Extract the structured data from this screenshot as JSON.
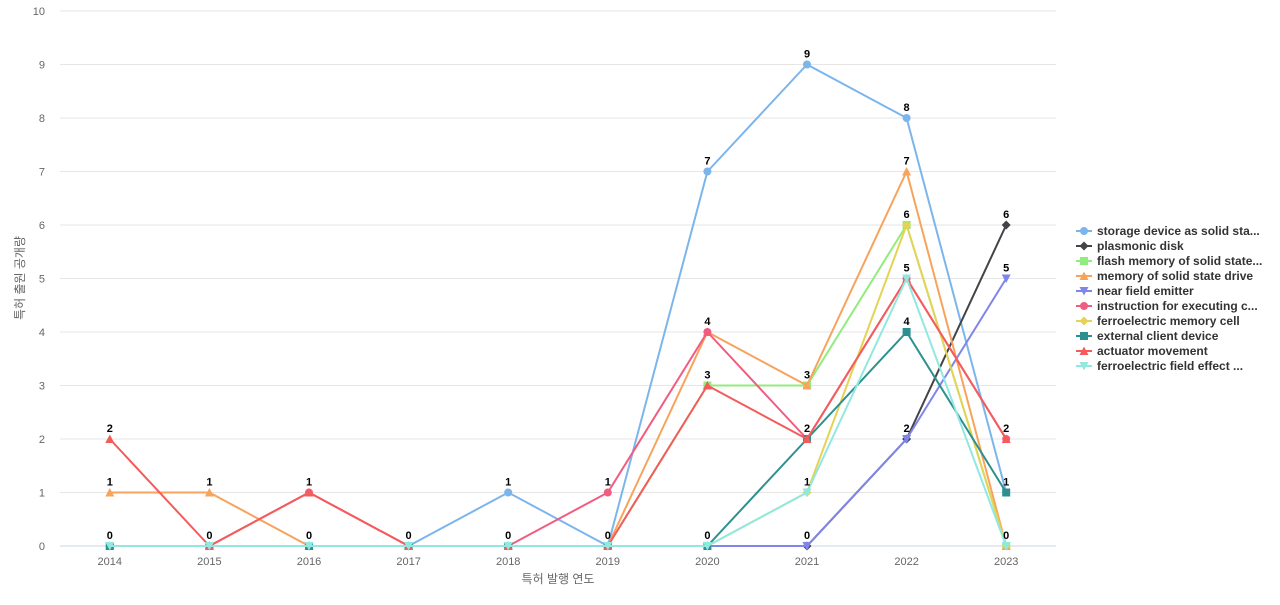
{
  "chart_data": {
    "type": "line",
    "title": "",
    "xlabel": "특허 발행 연도",
    "ylabel": "특허 출원 공개량",
    "ylim": [
      0,
      10
    ],
    "yticks": [
      0,
      1,
      2,
      3,
      4,
      5,
      6,
      7,
      8,
      9,
      10
    ],
    "grid": true,
    "legend_position": "right",
    "categories": [
      "2014",
      "2015",
      "2016",
      "2017",
      "2018",
      "2019",
      "2020",
      "2021",
      "2022",
      "2023"
    ],
    "series": [
      {
        "name": "storage device as solid sta...",
        "color": "#7cb5ec",
        "marker": "circle",
        "values": [
          0,
          0,
          0,
          0,
          1,
          0,
          7,
          9,
          8,
          1
        ]
      },
      {
        "name": "plasmonic disk",
        "color": "#434348",
        "marker": "diamond",
        "values": [
          0,
          0,
          0,
          0,
          0,
          0,
          0,
          0,
          2,
          6
        ]
      },
      {
        "name": "flash memory of solid state...",
        "color": "#90ed7d",
        "marker": "square",
        "values": [
          0,
          0,
          0,
          0,
          0,
          0,
          3,
          3,
          6,
          0
        ]
      },
      {
        "name": "memory of solid state drive",
        "color": "#f7a35c",
        "marker": "triangle",
        "values": [
          1,
          1,
          0,
          0,
          0,
          0,
          4,
          3,
          7,
          0
        ]
      },
      {
        "name": "near field emitter",
        "color": "#8085e9",
        "marker": "triangle-down",
        "values": [
          0,
          0,
          0,
          0,
          0,
          0,
          0,
          0,
          2,
          5
        ]
      },
      {
        "name": "instruction for executing c...",
        "color": "#f15c80",
        "marker": "circle",
        "values": [
          0,
          0,
          1,
          0,
          0,
          1,
          4,
          2,
          5,
          2
        ]
      },
      {
        "name": "ferroelectric memory cell",
        "color": "#e4d354",
        "marker": "diamond",
        "values": [
          0,
          0,
          0,
          0,
          0,
          0,
          0,
          1,
          6,
          0
        ]
      },
      {
        "name": "external client device",
        "color": "#2b908f",
        "marker": "square",
        "values": [
          0,
          0,
          0,
          0,
          0,
          0,
          0,
          2,
          4,
          1
        ]
      },
      {
        "name": "actuator movement",
        "color": "#f45b5b",
        "marker": "triangle",
        "values": [
          2,
          0,
          1,
          0,
          0,
          0,
          3,
          2,
          5,
          2
        ]
      },
      {
        "name": "ferroelectric field effect ...",
        "color": "#91e8e1",
        "marker": "triangle-down",
        "values": [
          0,
          0,
          0,
          0,
          0,
          0,
          0,
          1,
          5,
          0
        ]
      }
    ],
    "data_labels": [
      {
        "x": "2014",
        "value": 2
      },
      {
        "x": "2014",
        "value": 1
      },
      {
        "x": "2014",
        "value": 0
      },
      {
        "x": "2015",
        "value": 1
      },
      {
        "x": "2015",
        "value": 0
      },
      {
        "x": "2016",
        "value": 1
      },
      {
        "x": "2016",
        "value": 0
      },
      {
        "x": "2017",
        "value": 0
      },
      {
        "x": "2018",
        "value": 1
      },
      {
        "x": "2018",
        "value": 0
      },
      {
        "x": "2019",
        "value": 1
      },
      {
        "x": "2019",
        "value": 0
      },
      {
        "x": "2020",
        "value": 7
      },
      {
        "x": "2020",
        "value": 4
      },
      {
        "x": "2020",
        "value": 3
      },
      {
        "x": "2020",
        "value": 0
      },
      {
        "x": "2021",
        "value": 9
      },
      {
        "x": "2021",
        "value": 3
      },
      {
        "x": "2021",
        "value": 2
      },
      {
        "x": "2021",
        "value": 1
      },
      {
        "x": "2021",
        "value": 0
      },
      {
        "x": "2022",
        "value": 8
      },
      {
        "x": "2022",
        "value": 7
      },
      {
        "x": "2022",
        "value": 6
      },
      {
        "x": "2022",
        "value": 5
      },
      {
        "x": "2022",
        "value": 4
      },
      {
        "x": "2022",
        "value": 2
      },
      {
        "x": "2023",
        "value": 6
      },
      {
        "x": "2023",
        "value": 5
      },
      {
        "x": "2023",
        "value": 2
      },
      {
        "x": "2023",
        "value": 1
      },
      {
        "x": "2023",
        "value": 0
      }
    ]
  }
}
